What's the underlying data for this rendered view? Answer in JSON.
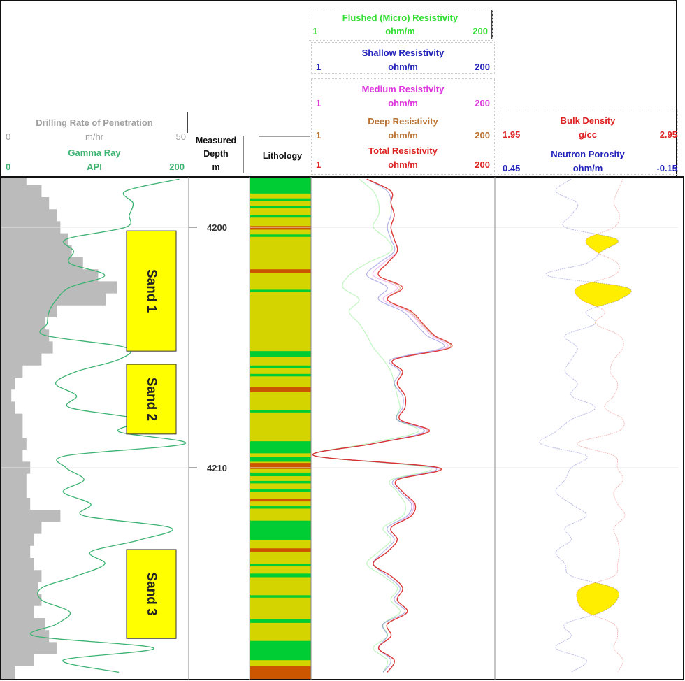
{
  "header": {
    "rop": {
      "title": "Drilling Rate of Penetration",
      "min": "0",
      "unit": "m/hr",
      "max": "50",
      "color": "#a0a0a0"
    },
    "gr": {
      "title": "Gamma Ray",
      "min": "0",
      "unit": "API",
      "max": "200",
      "color": "#3cb371"
    },
    "depth": {
      "line1": "Measured",
      "line2": "Depth",
      "unit": "m"
    },
    "lithology": {
      "title": "Lithology"
    },
    "flushed": {
      "title": "Flushed (Micro) Resistivity",
      "min": "1",
      "unit": "ohm/m",
      "max": "200",
      "color": "#33dd33"
    },
    "shallow": {
      "title": "Shallow Resistivity",
      "min": "1",
      "unit": "ohm/m",
      "max": "200",
      "color": "#2222bb"
    },
    "medium": {
      "title": "Medium Resistivity",
      "min": "1",
      "unit": "ohm/m",
      "max": "200",
      "color": "#dd33dd"
    },
    "deep": {
      "title": "Deep Resistivity",
      "min": "1",
      "unit": "ohm/m",
      "max": "200",
      "color": "#b87333"
    },
    "total": {
      "title": "Total Resistivity",
      "min": "1",
      "unit": "ohm/m",
      "max": "200",
      "color": "#dd2222"
    },
    "density": {
      "title": "Bulk Density",
      "min": "1.95",
      "unit": "g/cc",
      "max": "2.95",
      "color": "#dd2222"
    },
    "neutron": {
      "title": "Neutron Porosity",
      "min": "0.45",
      "unit": "ohm/m",
      "max": "-0.15",
      "color": "#2222bb"
    }
  },
  "chart_data": {
    "type": "line",
    "depth_range": [
      4197.9,
      4218.8
    ],
    "depth_ticks": [
      "4200",
      "4210"
    ],
    "depth": [
      4198,
      4198.5,
      4199,
      4199.5,
      4200,
      4200.5,
      4201,
      4201.5,
      4202,
      4202.5,
      4203,
      4203.5,
      4204,
      4204.5,
      4205,
      4205.5,
      4206,
      4206.5,
      4207,
      4207.5,
      4208,
      4208.5,
      4209,
      4209.5,
      4210,
      4210.5,
      4211,
      4211.5,
      4212,
      4212.5,
      4213,
      4213.5,
      4214,
      4214.5,
      4215,
      4215.5,
      4216,
      4216.5,
      4217,
      4217.5,
      4218,
      4218.5
    ],
    "series": {
      "rop": {
        "range": [
          0,
          50
        ],
        "fill_color": "#bbbbbb",
        "values": [
          7,
          11,
          13,
          15,
          16,
          18,
          19,
          22,
          26,
          31,
          28,
          15,
          12,
          13,
          14,
          11,
          6,
          4,
          3,
          4,
          6,
          6,
          7,
          6,
          8,
          7,
          7,
          8,
          16,
          11,
          9,
          8,
          9,
          11,
          10,
          11,
          9,
          12,
          13,
          15,
          9,
          4
        ]
      },
      "gr": {
        "range": [
          0,
          200
        ],
        "color": "#3cb371",
        "values": [
          190,
          133,
          141,
          137,
          133,
          70,
          78,
          74,
          111,
          74,
          60,
          52,
          50,
          48,
          133,
          126,
          81,
          59,
          81,
          74,
          148,
          126,
          196,
          70,
          70,
          89,
          67,
          96,
          89,
          181,
          148,
          96,
          111,
          81,
          44,
          44,
          74,
          60,
          37,
          163,
          67,
          126
        ]
      },
      "flushed": {
        "range": [
          1,
          200
        ],
        "scale": "log",
        "values": [
          4,
          6,
          7,
          7,
          6,
          9,
          10,
          5,
          3,
          2.5,
          4,
          3,
          4,
          5,
          6,
          8,
          10,
          11,
          12,
          13,
          12,
          22,
          5,
          1.1,
          30,
          10,
          12,
          15,
          14,
          8,
          10,
          7,
          5,
          8,
          12,
          10,
          13,
          8,
          9,
          6,
          9,
          8
        ]
      },
      "shallow": {
        "range": [
          1,
          200
        ],
        "scale": "log",
        "values": [
          5,
          9,
          10,
          10,
          9,
          10,
          11,
          7,
          5,
          9,
          7,
          14,
          20,
          28,
          45,
          10,
          13,
          11,
          14,
          14,
          12,
          26,
          6,
          1.1,
          35,
          11,
          13,
          18,
          16,
          9,
          11,
          8,
          6,
          9,
          13,
          11,
          15,
          8,
          9,
          7,
          10,
          8
        ]
      },
      "medium": {
        "range": [
          1,
          200
        ],
        "scale": "log",
        "values": [
          5,
          10,
          10,
          11,
          10,
          11,
          12,
          8,
          6,
          12,
          8,
          16,
          23,
          32,
          50,
          11,
          14,
          12,
          15,
          15,
          13,
          28,
          6,
          1.1,
          38,
          12,
          14,
          19,
          17,
          10,
          12,
          9,
          6,
          10,
          14,
          12,
          16,
          9,
          10,
          7,
          11,
          9
        ]
      },
      "deep": {
        "range": [
          1,
          200
        ],
        "scale": "log",
        "values": [
          5,
          10,
          10,
          11,
          10,
          11,
          12,
          9,
          7,
          13,
          9,
          17,
          24,
          34,
          54,
          11,
          14,
          12,
          15,
          15,
          13,
          29,
          6,
          1.1,
          39,
          12,
          14,
          20,
          18,
          10,
          12,
          9,
          6,
          10,
          14,
          12,
          16,
          9,
          10,
          7,
          11,
          9
        ]
      },
      "total": {
        "range": [
          1,
          200
        ],
        "scale": "log",
        "values": [
          5,
          10,
          10,
          11,
          10,
          11,
          12,
          9,
          7,
          14,
          9,
          18,
          25,
          35,
          56,
          11,
          14,
          12,
          15,
          15,
          13,
          30,
          6,
          1.1,
          40,
          12,
          14,
          20,
          18,
          10,
          12,
          9,
          6,
          10,
          14,
          12,
          16,
          9,
          10,
          7,
          11,
          9
        ]
      },
      "density": {
        "range": [
          1.95,
          2.95
        ],
        "values": [
          2.65,
          2.62,
          2.6,
          2.63,
          2.6,
          2.45,
          2.5,
          2.62,
          2.6,
          2.4,
          2.42,
          2.55,
          2.5,
          2.63,
          2.65,
          2.6,
          2.58,
          2.62,
          2.6,
          2.55,
          2.65,
          2.62,
          2.4,
          2.6,
          2.62,
          2.65,
          2.6,
          2.62,
          2.66,
          2.6,
          2.62,
          2.63,
          2.62,
          2.6,
          2.42,
          2.4,
          2.45,
          2.6,
          2.62,
          2.6,
          2.65,
          2.62
        ]
      },
      "neutron": {
        "range": [
          0.45,
          -0.15
        ],
        "values": [
          0.2,
          0.25,
          0.18,
          0.2,
          0.22,
          0.05,
          0.1,
          0.15,
          0.28,
          0.02,
          0.04,
          0.15,
          0.12,
          0.22,
          0.18,
          0.2,
          0.22,
          0.18,
          0.2,
          0.12,
          0.2,
          0.25,
          0.3,
          0.15,
          0.2,
          0.22,
          0.25,
          0.2,
          0.15,
          0.22,
          0.2,
          0.25,
          0.22,
          0.2,
          0.06,
          0.05,
          0.1,
          0.22,
          0.2,
          0.25,
          0.15,
          0.2
        ]
      },
      "crossover_fill_color": "#ffee00"
    },
    "lithology": {
      "colors": {
        "sand": "#d4d400",
        "shale": "#00cc33",
        "other": "#cc5500"
      },
      "background": "sand",
      "intervals": [
        [
          4197.9,
          4198.6,
          "shale"
        ],
        [
          4198.8,
          4198.9,
          "shale"
        ],
        [
          4199.1,
          4199.2,
          "shale"
        ],
        [
          4199.5,
          4199.6,
          "shale"
        ],
        [
          4199.95,
          4200.1,
          "other"
        ],
        [
          4200.3,
          4200.4,
          "shale"
        ],
        [
          4201.75,
          4201.9,
          "other"
        ],
        [
          4202.6,
          4202.7,
          "shale"
        ],
        [
          4205.15,
          4205.4,
          "shale"
        ],
        [
          4205.75,
          4205.85,
          "shale"
        ],
        [
          4206.1,
          4206.2,
          "shale"
        ],
        [
          4206.65,
          4206.85,
          "other"
        ],
        [
          4207.6,
          4207.7,
          "shale"
        ],
        [
          4208.9,
          4209.4,
          "shale"
        ],
        [
          4209.55,
          4209.75,
          "shale"
        ],
        [
          4209.8,
          4210.05,
          "other"
        ],
        [
          4210.2,
          4210.35,
          "shale"
        ],
        [
          4210.55,
          4210.65,
          "shale"
        ],
        [
          4210.9,
          4211.0,
          "shale"
        ],
        [
          4211.3,
          4211.4,
          "other"
        ],
        [
          4211.6,
          4211.7,
          "shale"
        ],
        [
          4212.2,
          4213.0,
          "shale"
        ],
        [
          4213.35,
          4213.5,
          "other"
        ],
        [
          4214.0,
          4214.1,
          "shale"
        ],
        [
          4214.4,
          4214.55,
          "shale"
        ],
        [
          4215.3,
          4215.4,
          "shale"
        ],
        [
          4216.3,
          4216.45,
          "shale"
        ],
        [
          4217.2,
          4218.0,
          "shale"
        ],
        [
          4218.25,
          4218.8,
          "other"
        ]
      ]
    },
    "annotations": [
      {
        "label": "Sand 1",
        "top": 4200.15,
        "bottom": 4205.15
      },
      {
        "label": "Sand 2",
        "top": 4205.7,
        "bottom": 4208.6
      },
      {
        "label": "Sand 3",
        "top": 4213.4,
        "bottom": 4217.1
      }
    ],
    "grid": true
  }
}
